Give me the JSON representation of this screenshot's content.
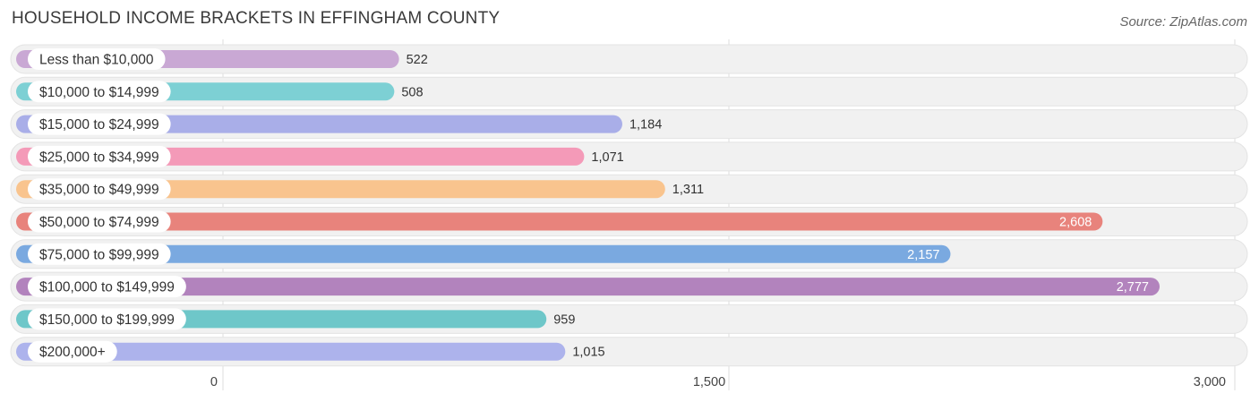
{
  "header": {
    "title": "HOUSEHOLD INCOME BRACKETS IN EFFINGHAM COUNTY",
    "source": "Source: ZipAtlas.com"
  },
  "chart_data": {
    "type": "bar",
    "orientation": "horizontal",
    "title": "HOUSEHOLD INCOME BRACKETS IN EFFINGHAM COUNTY",
    "xlabel": "",
    "ylabel": "",
    "xlim": [
      0,
      3000
    ],
    "ticks": [
      0,
      1500,
      3000
    ],
    "tick_labels": [
      "0",
      "1,500",
      "3,000"
    ],
    "grid": true,
    "categories": [
      "Less than $10,000",
      "$10,000 to $14,999",
      "$15,000 to $24,999",
      "$25,000 to $34,999",
      "$35,000 to $49,999",
      "$50,000 to $74,999",
      "$75,000 to $99,999",
      "$100,000 to $149,999",
      "$150,000 to $199,999",
      "$200,000+"
    ],
    "values": [
      522,
      508,
      1184,
      1071,
      1311,
      2608,
      2157,
      2777,
      959,
      1015
    ],
    "value_labels": [
      "522",
      "508",
      "1,184",
      "1,071",
      "1,311",
      "2,608",
      "2,157",
      "2,777",
      "959",
      "1,015"
    ],
    "colors": [
      "#c9a8d4",
      "#7dd0d4",
      "#a9aee8",
      "#f49ab8",
      "#f9c48e",
      "#e8837c",
      "#7aa9e0",
      "#b283bd",
      "#6ec7c9",
      "#adb3ec"
    ]
  }
}
